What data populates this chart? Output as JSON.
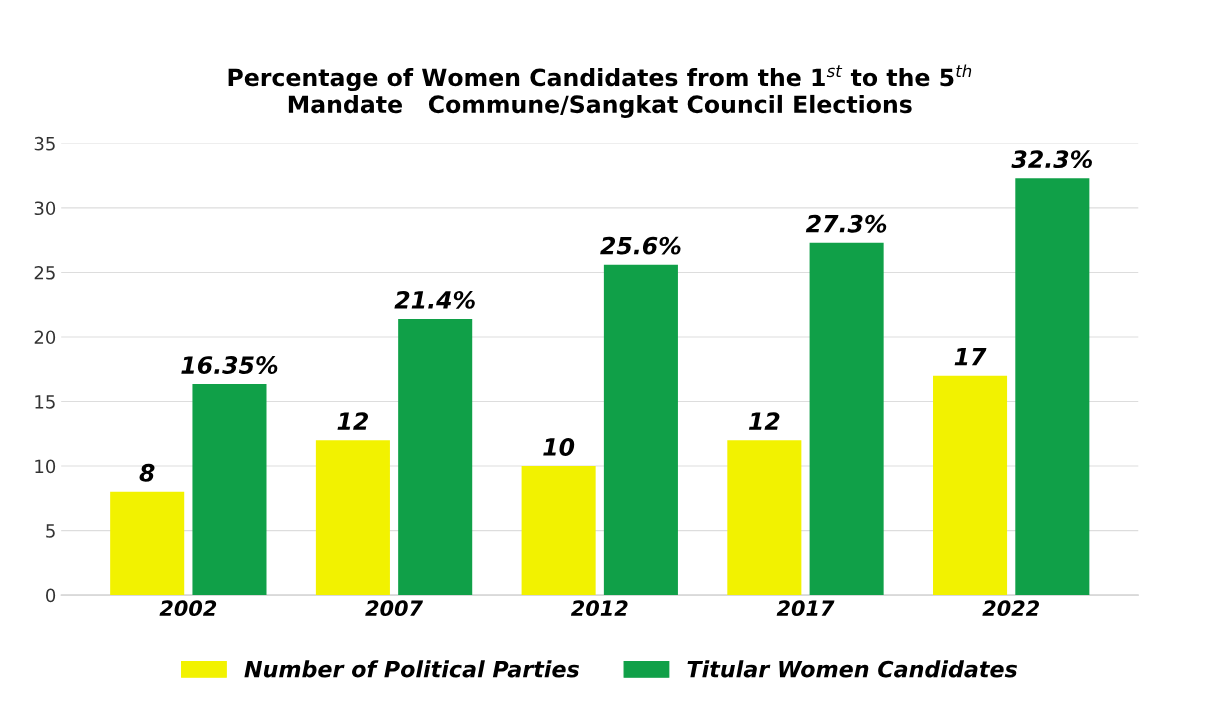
{
  "chart_data": {
    "type": "bar",
    "title": "Percentage of Women Candidates from the 1$^{st}$ to the 5$^{th}$\nMandate   Commune/Sangkat Council Elections",
    "categories": [
      "2002",
      "2007",
      "2012",
      "2017",
      "2022"
    ],
    "series": [
      {
        "name": "Number of Political Parties",
        "color": "#f2f200",
        "values": [
          8,
          12,
          10,
          12,
          17
        ],
        "value_labels": [
          "8",
          "12",
          "10",
          "12",
          "17"
        ]
      },
      {
        "name": "Titular Women Candidates",
        "color": "#10a048",
        "values": [
          16.35,
          21.4,
          25.6,
          27.3,
          32.3
        ],
        "value_labels": [
          "16.35%",
          "21.4%",
          "25.6%",
          "27.3%",
          "32.3%"
        ]
      }
    ],
    "ylim": [
      0,
      35
    ],
    "yticks": [
      0,
      5,
      10,
      15,
      20,
      25,
      30,
      35
    ],
    "grid": "y",
    "legend": "bottom"
  }
}
